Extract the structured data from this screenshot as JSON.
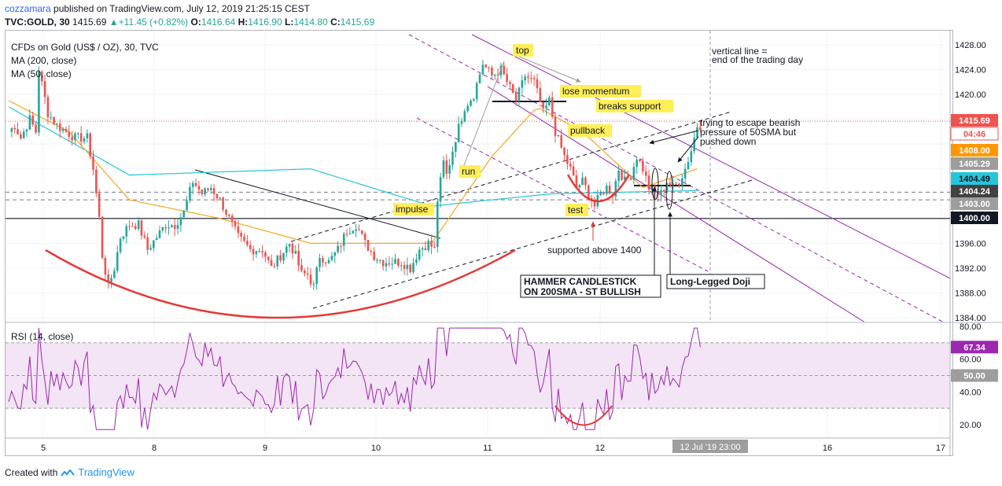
{
  "header": {
    "user": "cozzamara",
    "published": " published on TradingView.com, July 12, 2019 21:25:15 CEST",
    "symbol": "TVC:GOLD, 30",
    "last": "1415.69",
    "change": "+11.45 (+0.82%)",
    "o_label": "O:",
    "o": "1416.64",
    "h_label": "H:",
    "h": "1416.90",
    "l_label": "L:",
    "l": "1414.80",
    "c_label": "C:",
    "c": "1415.69"
  },
  "legend": {
    "title": "CFDs on Gold (US$ / OZ), 30, TVC",
    "ma200": "MA (200, close)",
    "ma50": "MA (50, close)",
    "rsi": "RSI (14, close)"
  },
  "colors": {
    "up": "#26a69a",
    "down": "#ef5350",
    "ma200": "#26c6da",
    "ma50": "#f5a623",
    "channel": "#9c27b0",
    "rsi": "#9c27b0",
    "rsi_band": "#f3e5f5",
    "arc": "#e53935",
    "annotation_bg": "#ffee58",
    "price_badge": "#ef5350"
  },
  "annotations": {
    "top": "top",
    "lose_momentum": "lose momentum",
    "breaks_support": "breaks support",
    "pullback": "pullback",
    "run": "run",
    "impulse": "impulse",
    "test": "test",
    "supported": "supported above 1400",
    "hammer_1": "HAMMER CANDLESTICK",
    "hammer_2": "ON 200SMA - ST BULLISH",
    "doji": "Long-Legged Doji",
    "vline_1": "vertical line =",
    "vline_2": "end of the trading day",
    "escape_1": "trying to escape bearish",
    "escape_2": "pressure of 50SMA but",
    "escape_3": "pushed down"
  },
  "price_labels": [
    {
      "text": "1415.69",
      "bg": "#ef5350",
      "fg": "#ffffff"
    },
    {
      "text": "04:46",
      "bg": "#ffffff",
      "fg": "#ef5350"
    },
    {
      "text": "1408.00",
      "bg": "#ff9800",
      "fg": "#ffffff"
    },
    {
      "text": "1405.29",
      "bg": "#9e9e9e",
      "fg": "#ffffff"
    },
    {
      "text": "1404.49",
      "bg": "#26c6da",
      "fg": "#131722"
    },
    {
      "text": "1404.24",
      "bg": "#424242",
      "fg": "#ffffff"
    },
    {
      "text": "1403.00",
      "bg": "#9e9e9e",
      "fg": "#ffffff"
    },
    {
      "text": "1400.00",
      "bg": "#131722",
      "fg": "#ffffff"
    }
  ],
  "rsi_labels": [
    {
      "text": "67.34",
      "bg": "#9c27b0",
      "fg": "#ffffff"
    },
    {
      "text": "50.00",
      "bg": "#9e9e9e",
      "fg": "#ffffff"
    }
  ],
  "time_badge": "12 Jul '19    23:00",
  "footer": {
    "created": "Created with",
    "brand": "TradingView"
  },
  "chart_data": {
    "type": "candlestick",
    "timeframe": "30",
    "x_ticks": [
      "5",
      "8",
      "9",
      "10",
      "11",
      "12",
      "16",
      "17"
    ],
    "y_ticks": [
      1384,
      1388,
      1392,
      1396,
      1400,
      1404,
      1408,
      1412,
      1416,
      1420,
      1424,
      1428
    ],
    "y_tick_labels": [
      "1384.00",
      "1388.00",
      "1392.00",
      "1396.00",
      "1400.00",
      "1404.00",
      "1408.00",
      "1412.00",
      "1416.00",
      "1420.00",
      "1424.00",
      "1428.00"
    ],
    "ylim": [
      1383,
      1430
    ],
    "anchors": [
      [
        0,
        1414
      ],
      [
        2,
        1415
      ],
      [
        4,
        1413
      ],
      [
        7,
        1416
      ],
      [
        9,
        1414
      ],
      [
        10,
        1424
      ],
      [
        13,
        1417
      ],
      [
        16,
        1415
      ],
      [
        19,
        1414
      ],
      [
        22,
        1413
      ],
      [
        26,
        1413
      ],
      [
        28,
        1408
      ],
      [
        30,
        1400
      ],
      [
        31,
        1394
      ],
      [
        33,
        1389
      ],
      [
        35,
        1392
      ],
      [
        37,
        1397
      ],
      [
        40,
        1399
      ],
      [
        43,
        1399
      ],
      [
        46,
        1395
      ],
      [
        49,
        1397
      ],
      [
        52,
        1399
      ],
      [
        55,
        1399
      ],
      [
        58,
        1401
      ],
      [
        61,
        1406
      ],
      [
        64,
        1404
      ],
      [
        67,
        1405
      ],
      [
        70,
        1403
      ],
      [
        73,
        1400
      ],
      [
        76,
        1397
      ],
      [
        80,
        1395
      ],
      [
        84,
        1395
      ],
      [
        87,
        1392
      ],
      [
        90,
        1394
      ],
      [
        93,
        1396
      ],
      [
        95,
        1394
      ],
      [
        97,
        1391
      ],
      [
        99,
        1391
      ],
      [
        101,
        1389
      ],
      [
        103,
        1394
      ],
      [
        106,
        1393
      ],
      [
        109,
        1395
      ],
      [
        112,
        1398
      ],
      [
        115,
        1399
      ],
      [
        118,
        1396
      ],
      [
        121,
        1394
      ],
      [
        124,
        1393
      ],
      [
        127,
        1393
      ],
      [
        130,
        1393
      ],
      [
        133,
        1392
      ],
      [
        136,
        1395
      ],
      [
        139,
        1396
      ],
      [
        141,
        1395
      ],
      [
        142,
        1403
      ],
      [
        144,
        1409
      ],
      [
        145,
        1407
      ],
      [
        148,
        1413
      ],
      [
        151,
        1418
      ],
      [
        154,
        1420
      ],
      [
        157,
        1425
      ],
      [
        160,
        1423
      ],
      [
        163,
        1424
      ],
      [
        166,
        1421
      ],
      [
        168,
        1419
      ],
      [
        171,
        1423
      ],
      [
        174,
        1422
      ],
      [
        177,
        1417
      ],
      [
        179,
        1419
      ],
      [
        181,
        1414
      ],
      [
        184,
        1410
      ],
      [
        186,
        1408
      ],
      [
        188,
        1405
      ],
      [
        190,
        1406
      ],
      [
        192,
        1404
      ],
      [
        194,
        1402
      ],
      [
        196,
        1404
      ],
      [
        198,
        1405
      ],
      [
        200,
        1404
      ],
      [
        202,
        1408
      ],
      [
        204,
        1406
      ],
      [
        206,
        1407
      ],
      [
        208,
        1410
      ],
      [
        210,
        1408
      ],
      [
        212,
        1405
      ],
      [
        214,
        1404
      ],
      [
        216,
        1404
      ],
      [
        218,
        1406
      ],
      [
        220,
        1405
      ],
      [
        222,
        1406
      ],
      [
        224,
        1408
      ],
      [
        226,
        1411
      ],
      [
        228,
        1415
      ]
    ],
    "ma200": {
      "start": 1418,
      "breaks": [
        [
          40,
          1407
        ],
        [
          100,
          1408
        ],
        [
          140,
          1402
        ],
        [
          180,
          1404
        ],
        [
          228,
          1404.5
        ]
      ]
    },
    "ma50": {
      "breaks": [
        [
          0,
          1419
        ],
        [
          20,
          1414
        ],
        [
          40,
          1403
        ],
        [
          70,
          1400
        ],
        [
          100,
          1396
        ],
        [
          140,
          1396
        ],
        [
          160,
          1410
        ],
        [
          175,
          1418
        ],
        [
          190,
          1414
        ],
        [
          210,
          1405
        ],
        [
          228,
          1408
        ]
      ]
    },
    "rsi": {
      "ylim": [
        15,
        82
      ],
      "ticks": [
        20,
        40,
        50,
        60,
        80
      ],
      "band": [
        30,
        70
      ],
      "last": 67.34
    },
    "horizontal_levels": [
      1400.0,
      1403.0,
      1404.24
    ],
    "last_price": 1415.69
  }
}
